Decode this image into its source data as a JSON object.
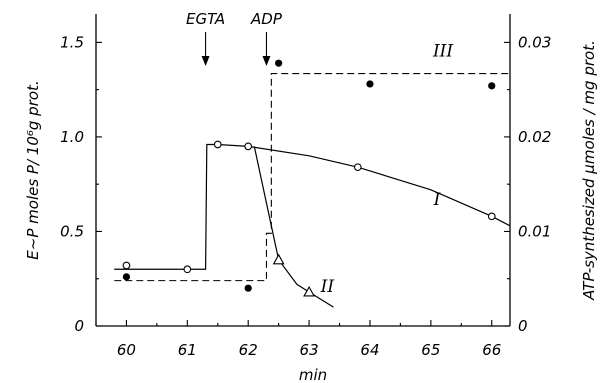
{
  "chart_data": {
    "type": "scatter",
    "xlabel": "min",
    "ylabel_left": "E~P  moles P/ 10⁶g  prot.",
    "ylabel_right": "ATP-synthesized  µmoles / mg  prot.",
    "xlim": [
      59.5,
      66.3
    ],
    "ylim_left": [
      0,
      1.65
    ],
    "ylim_right": [
      0,
      0.033
    ],
    "x_ticks": [
      60,
      61,
      62,
      63,
      64,
      65,
      66
    ],
    "x_tick_labels": [
      "60",
      "61",
      "62",
      "63",
      "64",
      "65",
      "66"
    ],
    "y_left_ticks": [
      0,
      0.5,
      1.0,
      1.5
    ],
    "y_left_tick_labels": [
      "0",
      "0.5",
      "1.0",
      "1.5"
    ],
    "y_right_ticks": [
      0,
      0.01,
      0.02,
      0.03
    ],
    "y_right_tick_labels": [
      "0",
      "0.01",
      "0.02",
      "0.03"
    ],
    "grid": false,
    "annotations": [
      {
        "text": "EGTA",
        "x": 61.3
      },
      {
        "text": "ADP",
        "x": 62.3
      }
    ],
    "series": [
      {
        "name": "I",
        "axis": "left",
        "marker": "open-circle",
        "points": [
          [
            60,
            0.32
          ],
          [
            61,
            0.3
          ],
          [
            61.5,
            0.96
          ],
          [
            62,
            0.95
          ],
          [
            63.8,
            0.84
          ],
          [
            66,
            0.58
          ]
        ],
        "curve": [
          [
            59.8,
            0.3
          ],
          [
            61.3,
            0.3
          ],
          [
            61.32,
            0.96
          ],
          [
            61.5,
            0.96
          ],
          [
            62,
            0.95
          ],
          [
            63,
            0.9
          ],
          [
            63.8,
            0.84
          ],
          [
            65,
            0.72
          ],
          [
            66,
            0.58
          ],
          [
            66.3,
            0.53
          ]
        ]
      },
      {
        "name": "II",
        "axis": "left",
        "marker": "open-triangle",
        "points": [
          [
            62.5,
            0.35
          ],
          [
            63,
            0.18
          ]
        ],
        "curve": [
          [
            62.1,
            0.95
          ],
          [
            62.3,
            0.65
          ],
          [
            62.5,
            0.35
          ],
          [
            62.8,
            0.22
          ],
          [
            63,
            0.18
          ],
          [
            63.4,
            0.1
          ]
        ]
      },
      {
        "name": "III",
        "axis": "right",
        "marker": "filled-circle",
        "points": [
          [
            60,
            0.0052
          ],
          [
            62,
            0.004
          ],
          [
            62.5,
            0.0278
          ],
          [
            64,
            0.0256
          ],
          [
            66,
            0.0254
          ]
        ],
        "curve": [
          [
            59.8,
            0.0048
          ],
          [
            62.3,
            0.0048
          ],
          [
            62.3,
            0.0098
          ],
          [
            62.38,
            0.0098
          ],
          [
            62.38,
            0.0267
          ],
          [
            66.3,
            0.0267
          ]
        ]
      }
    ]
  }
}
